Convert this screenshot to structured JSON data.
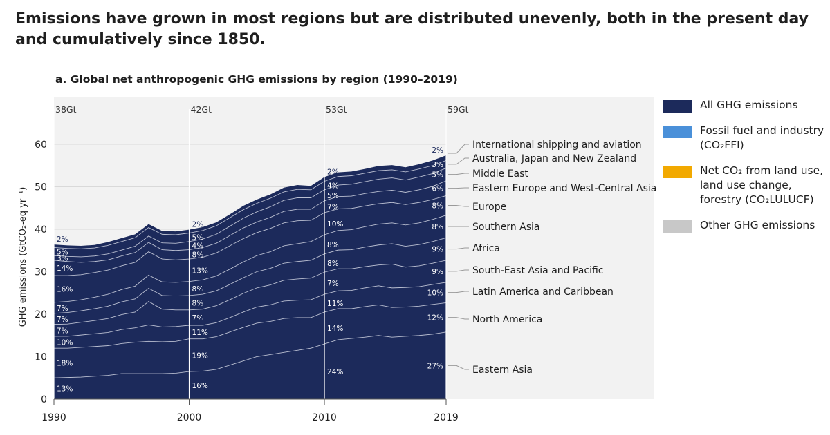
{
  "headline": "Emissions have grown in most regions but are distributed unevenly, both in the present day and cumulatively since 1850.",
  "legend": [
    {
      "label": "All GHG emissions",
      "color": "#1c2a5b"
    },
    {
      "label": "Fossil fuel and industry (CO₂FFI)",
      "color": "#4a90d9"
    },
    {
      "label": "Net CO₂ from land use, land use change, forestry (CO₂LULUCF)",
      "color": "#f2a900"
    },
    {
      "label": "Other GHG emissions",
      "color": "#c8c8c8"
    }
  ],
  "chart_data": {
    "type": "area",
    "title": "a. Global net anthropogenic GHG emissions by region (1990–2019)",
    "ylabel": "GHG emissions (GtCO₂-eq yr⁻¹)",
    "xlabel": "",
    "ylim": [
      0,
      60
    ],
    "xlim": [
      1990,
      2019
    ],
    "x_ticks": [
      "1990",
      "2000",
      "2010",
      "2019"
    ],
    "y_ticks": [
      "0",
      "10",
      "20",
      "30",
      "40",
      "50",
      "60"
    ],
    "grid": true,
    "colors": {
      "area": "#1c2a5b",
      "background": "#f2f2f2",
      "separator": "#d6d9e6"
    },
    "totals": [
      {
        "year": 1990,
        "label": "38Gt"
      },
      {
        "year": 2000,
        "label": "42Gt"
      },
      {
        "year": 2010,
        "label": "53Gt"
      },
      {
        "year": 2019,
        "label": "59Gt"
      }
    ],
    "x": [
      1990,
      1991,
      1992,
      1993,
      1994,
      1995,
      1996,
      1997,
      1998,
      1999,
      2000,
      2001,
      2002,
      2003,
      2004,
      2005,
      2006,
      2007,
      2008,
      2009,
      2010,
      2011,
      2012,
      2013,
      2014,
      2015,
      2016,
      2017,
      2018,
      2019
    ],
    "series": [
      {
        "name": "Eastern Asia",
        "values": [
          5.0,
          5.1,
          5.2,
          5.4,
          5.6,
          6.0,
          6.0,
          6.0,
          6.0,
          6.1,
          6.5,
          6.6,
          7.0,
          8.0,
          9.0,
          10.0,
          10.5,
          11.0,
          11.5,
          12.0,
          13.0,
          14.0,
          14.3,
          14.6,
          15.0,
          14.6,
          14.8,
          15.0,
          15.3,
          15.8
        ]
      },
      {
        "name": "North America",
        "values": [
          7.0,
          6.9,
          7.0,
          7.0,
          7.0,
          7.1,
          7.4,
          7.6,
          7.5,
          7.5,
          7.7,
          7.6,
          7.7,
          7.8,
          7.9,
          7.9,
          7.8,
          8.0,
          7.7,
          7.2,
          7.5,
          7.3,
          7.0,
          7.2,
          7.2,
          7.0,
          6.9,
          6.9,
          7.0,
          6.9
        ]
      },
      {
        "name": "Latin America and Caribbean",
        "values": [
          2.8,
          2.8,
          2.9,
          3.0,
          3.1,
          3.3,
          3.4,
          3.9,
          3.5,
          3.5,
          3.2,
          3.2,
          3.3,
          3.4,
          3.6,
          3.8,
          3.9,
          4.1,
          4.1,
          4.2,
          4.2,
          4.2,
          4.3,
          4.4,
          4.5,
          4.6,
          4.6,
          4.6,
          4.7,
          4.8
        ]
      },
      {
        "name": "South-East Asia and Pacific",
        "values": [
          2.8,
          2.9,
          3.0,
          3.1,
          3.3,
          3.5,
          3.7,
          5.5,
          4.2,
          3.9,
          3.6,
          3.8,
          4.0,
          4.2,
          4.4,
          4.5,
          4.7,
          4.9,
          5.0,
          5.1,
          5.2,
          5.2,
          5.1,
          5.0,
          4.9,
          5.6,
          4.8,
          4.9,
          5.0,
          5.2
        ]
      },
      {
        "name": "Africa",
        "values": [
          2.6,
          2.7,
          2.7,
          2.8,
          2.9,
          3.0,
          3.1,
          3.1,
          3.2,
          3.3,
          3.4,
          3.5,
          3.5,
          3.6,
          3.7,
          3.8,
          3.9,
          4.0,
          4.1,
          4.2,
          4.3,
          4.4,
          4.5,
          4.6,
          4.7,
          4.8,
          4.9,
          5.0,
          5.1,
          5.3
        ]
      },
      {
        "name": "Southern Asia",
        "values": [
          2.6,
          2.6,
          2.6,
          2.7,
          2.8,
          2.9,
          3.0,
          3.1,
          3.2,
          3.2,
          3.3,
          3.4,
          3.5,
          3.6,
          3.7,
          3.8,
          3.9,
          4.1,
          4.2,
          4.4,
          4.5,
          4.6,
          4.7,
          4.8,
          4.9,
          4.9,
          5.0,
          5.1,
          5.2,
          5.3
        ]
      },
      {
        "name": "Europe",
        "values": [
          6.3,
          6.1,
          5.9,
          5.8,
          5.7,
          5.6,
          5.6,
          5.5,
          5.4,
          5.3,
          5.3,
          5.3,
          5.4,
          5.5,
          5.5,
          5.4,
          5.5,
          5.4,
          5.4,
          5.0,
          5.2,
          5.1,
          5.0,
          4.9,
          4.8,
          4.8,
          4.8,
          4.8,
          4.7,
          4.6
        ]
      },
      {
        "name": "Eastern Europe and West-Central Asia",
        "values": [
          3.6,
          3.3,
          2.9,
          2.6,
          2.4,
          2.3,
          2.3,
          2.2,
          2.2,
          2.2,
          2.2,
          2.3,
          2.3,
          2.4,
          2.5,
          2.5,
          2.6,
          2.7,
          2.7,
          2.6,
          2.8,
          2.9,
          2.9,
          2.9,
          2.9,
          2.9,
          2.9,
          3.0,
          3.1,
          3.5
        ]
      },
      {
        "name": "Middle East",
        "values": [
          1.1,
          1.2,
          1.3,
          1.3,
          1.4,
          1.4,
          1.5,
          1.5,
          1.6,
          1.7,
          1.9,
          2.0,
          2.1,
          2.2,
          2.3,
          2.4,
          2.5,
          2.6,
          2.7,
          2.7,
          2.6,
          2.7,
          2.8,
          2.8,
          2.9,
          2.9,
          2.9,
          3.0,
          3.0,
          3.0
        ]
      },
      {
        "name": "Australia, Japan and New Zealand",
        "values": [
          1.9,
          1.9,
          1.9,
          1.9,
          2.0,
          2.0,
          2.0,
          2.0,
          2.0,
          2.0,
          2.0,
          2.0,
          2.0,
          2.0,
          2.0,
          2.0,
          2.0,
          2.0,
          2.0,
          1.9,
          2.0,
          2.0,
          2.0,
          2.0,
          2.0,
          1.9,
          1.9,
          1.9,
          1.9,
          1.8
        ]
      },
      {
        "name": "International shipping and aviation",
        "values": [
          0.7,
          0.7,
          0.7,
          0.7,
          0.8,
          0.8,
          0.8,
          0.8,
          0.8,
          0.8,
          0.8,
          0.8,
          0.8,
          0.8,
          0.9,
          0.9,
          0.9,
          1.0,
          1.0,
          0.9,
          1.0,
          1.0,
          1.0,
          1.0,
          1.1,
          1.1,
          1.1,
          1.1,
          1.2,
          1.2
        ]
      }
    ],
    "percent_labels": [
      {
        "year": 1990,
        "values": [
          "13%",
          "18%",
          "10%",
          "7%",
          "7%",
          "7%",
          "16%",
          "14%",
          "3%",
          "5%",
          "2%"
        ]
      },
      {
        "year": 2000,
        "values": [
          "16%",
          "19%",
          "11%",
          "7%",
          "8%",
          "8%",
          "13%",
          "8%",
          "4%",
          "5%",
          "2%"
        ]
      },
      {
        "year": 2010,
        "values": [
          "24%",
          "14%",
          "11%",
          "7%",
          "8%",
          "8%",
          "10%",
          "7%",
          "5%",
          "4%",
          "2%"
        ]
      },
      {
        "year": 2019,
        "values": [
          "27%",
          "12%",
          "10%",
          "9%",
          "9%",
          "8%",
          "8%",
          "6%",
          "5%",
          "3%",
          "2%"
        ]
      }
    ]
  }
}
